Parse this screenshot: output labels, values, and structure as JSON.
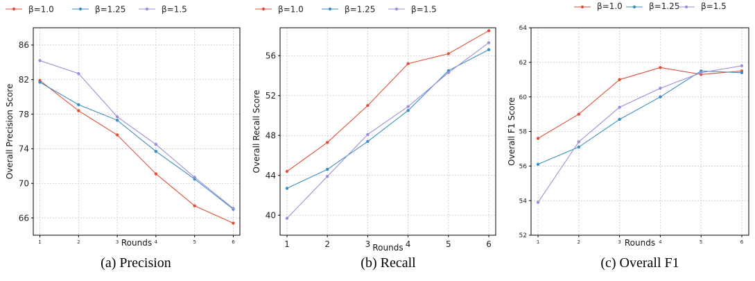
{
  "legend_labels": [
    "β=1.0",
    "β=1.25",
    "β=1.5"
  ],
  "series_colors": [
    "#e0503a",
    "#3a8fc0",
    "#9b8fd9"
  ],
  "chart_data": [
    {
      "type": "line",
      "caption": "(a) Precision",
      "xlabel": "Rounds",
      "ylabel": "Overall Precision Score",
      "x": [
        1,
        2,
        3,
        4,
        5,
        6
      ],
      "xticks": [
        "1",
        "2",
        "3",
        "4",
        "5",
        "6"
      ],
      "ylim": [
        64,
        88
      ],
      "yticks": [
        66,
        70,
        74,
        78,
        82,
        86
      ],
      "ytick_labels": [
        "66",
        "70",
        "74",
        "78",
        "82",
        "86"
      ],
      "grid": true,
      "legend_position": "top-left",
      "series": [
        {
          "name": "β=1.0",
          "color": "#e0503a",
          "values": [
            81.9,
            78.4,
            75.6,
            71.1,
            67.4,
            65.4
          ]
        },
        {
          "name": "β=1.25",
          "color": "#3a8fc0",
          "values": [
            81.7,
            79.1,
            77.3,
            73.7,
            70.5,
            67.0
          ]
        },
        {
          "name": "β=1.5",
          "color": "#9b8fd9",
          "values": [
            84.2,
            82.7,
            77.7,
            74.5,
            70.7,
            67.1
          ]
        }
      ]
    },
    {
      "type": "line",
      "caption": "(b) Recall",
      "xlabel": "Rounds",
      "ylabel": "Overall Recall Score",
      "x": [
        1,
        2,
        3,
        4,
        5,
        6
      ],
      "xticks": [
        "1",
        "2",
        "3",
        "4",
        "5",
        "6"
      ],
      "ylim": [
        38,
        58.8
      ],
      "yticks": [
        40,
        44,
        48,
        52,
        56
      ],
      "ytick_labels": [
        "40",
        "44",
        "48",
        "52",
        "56"
      ],
      "grid": true,
      "legend_position": "top-left",
      "series": [
        {
          "name": "β=1.0",
          "color": "#e0503a",
          "values": [
            44.4,
            47.3,
            51.0,
            55.2,
            56.2,
            58.5
          ]
        },
        {
          "name": "β=1.25",
          "color": "#3a8fc0",
          "values": [
            42.7,
            44.6,
            47.4,
            50.5,
            54.5,
            56.6
          ]
        },
        {
          "name": "β=1.5",
          "color": "#9b8fd9",
          "values": [
            39.7,
            43.9,
            48.1,
            50.9,
            54.3,
            57.3
          ]
        }
      ]
    },
    {
      "type": "line",
      "caption": "(c) Overall F1",
      "xlabel": "Rounds",
      "ylabel": "Overall F1 Score",
      "x": [
        1,
        2,
        3,
        4,
        5,
        6
      ],
      "xticks": [
        "1",
        "2",
        "3",
        "4",
        "5",
        "6"
      ],
      "ylim": [
        52,
        64
      ],
      "yticks": [
        52,
        54,
        56,
        58,
        60,
        62,
        64
      ],
      "ytick_labels": [
        "52",
        "54",
        "56",
        "58",
        "60",
        "62",
        "64"
      ],
      "grid": true,
      "legend_position": "top-center",
      "series": [
        {
          "name": "β=1.0",
          "color": "#e0503a",
          "values": [
            57.6,
            59.0,
            61.0,
            61.7,
            61.3,
            61.5
          ]
        },
        {
          "name": "β=1.25",
          "color": "#3a8fc0",
          "values": [
            56.1,
            57.1,
            58.7,
            60.0,
            61.5,
            61.4
          ]
        },
        {
          "name": "β=1.5",
          "color": "#9b8fd9",
          "values": [
            53.9,
            57.4,
            59.4,
            60.5,
            61.4,
            61.8
          ]
        }
      ]
    }
  ]
}
